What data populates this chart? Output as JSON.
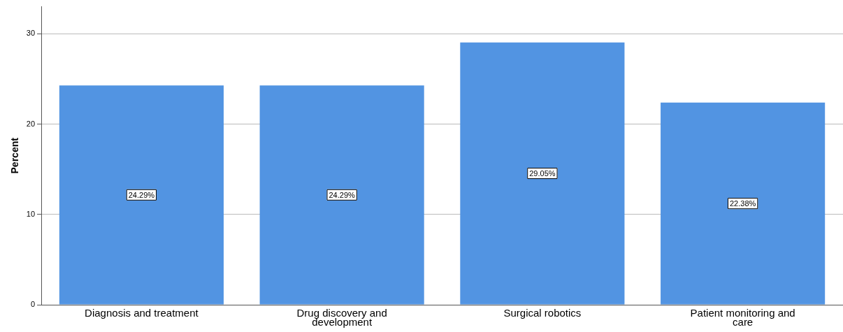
{
  "chart_data": {
    "type": "bar",
    "ylabel": "Percent",
    "categories": [
      "Diagnosis and treatment",
      "Drug discovery and development",
      "Surgical robotics",
      "Patient monitoring and care"
    ],
    "values": [
      24.29,
      24.29,
      29.05,
      22.38
    ],
    "value_labels": [
      "24.29%",
      "24.29%",
      "29.05%",
      "22.38%"
    ],
    "color": "#5294e2",
    "ylim": [
      0,
      33
    ],
    "yticks": [
      0,
      10,
      20,
      30
    ],
    "grid": "y",
    "legend": false
  }
}
